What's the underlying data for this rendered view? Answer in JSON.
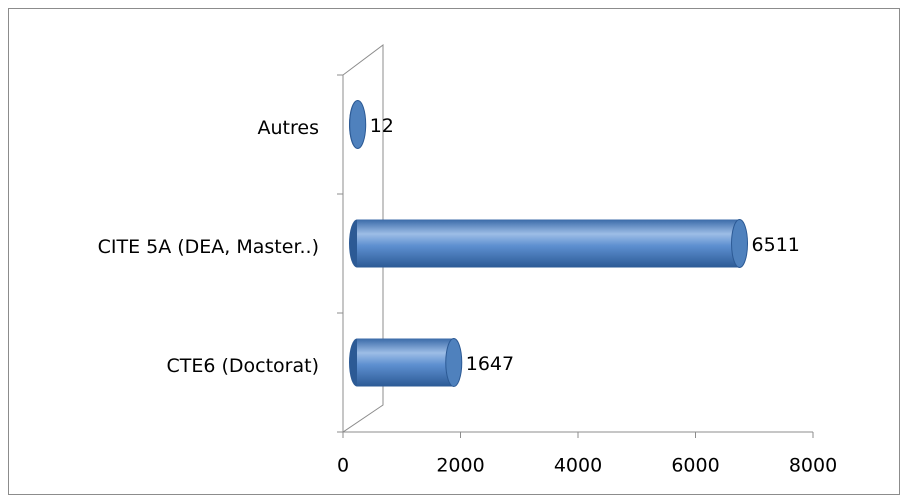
{
  "chart_data": {
    "type": "bar",
    "orientation": "horizontal",
    "categories": [
      "CTE6 (Doctorat)",
      "CITE 5A (DEA, Master..)",
      "Autres"
    ],
    "values": [
      1647,
      6511,
      12
    ],
    "color": "#4f81bd",
    "xlim": [
      0,
      8000
    ],
    "xticks": [
      0,
      2000,
      4000,
      6000,
      8000
    ],
    "grid": false
  }
}
